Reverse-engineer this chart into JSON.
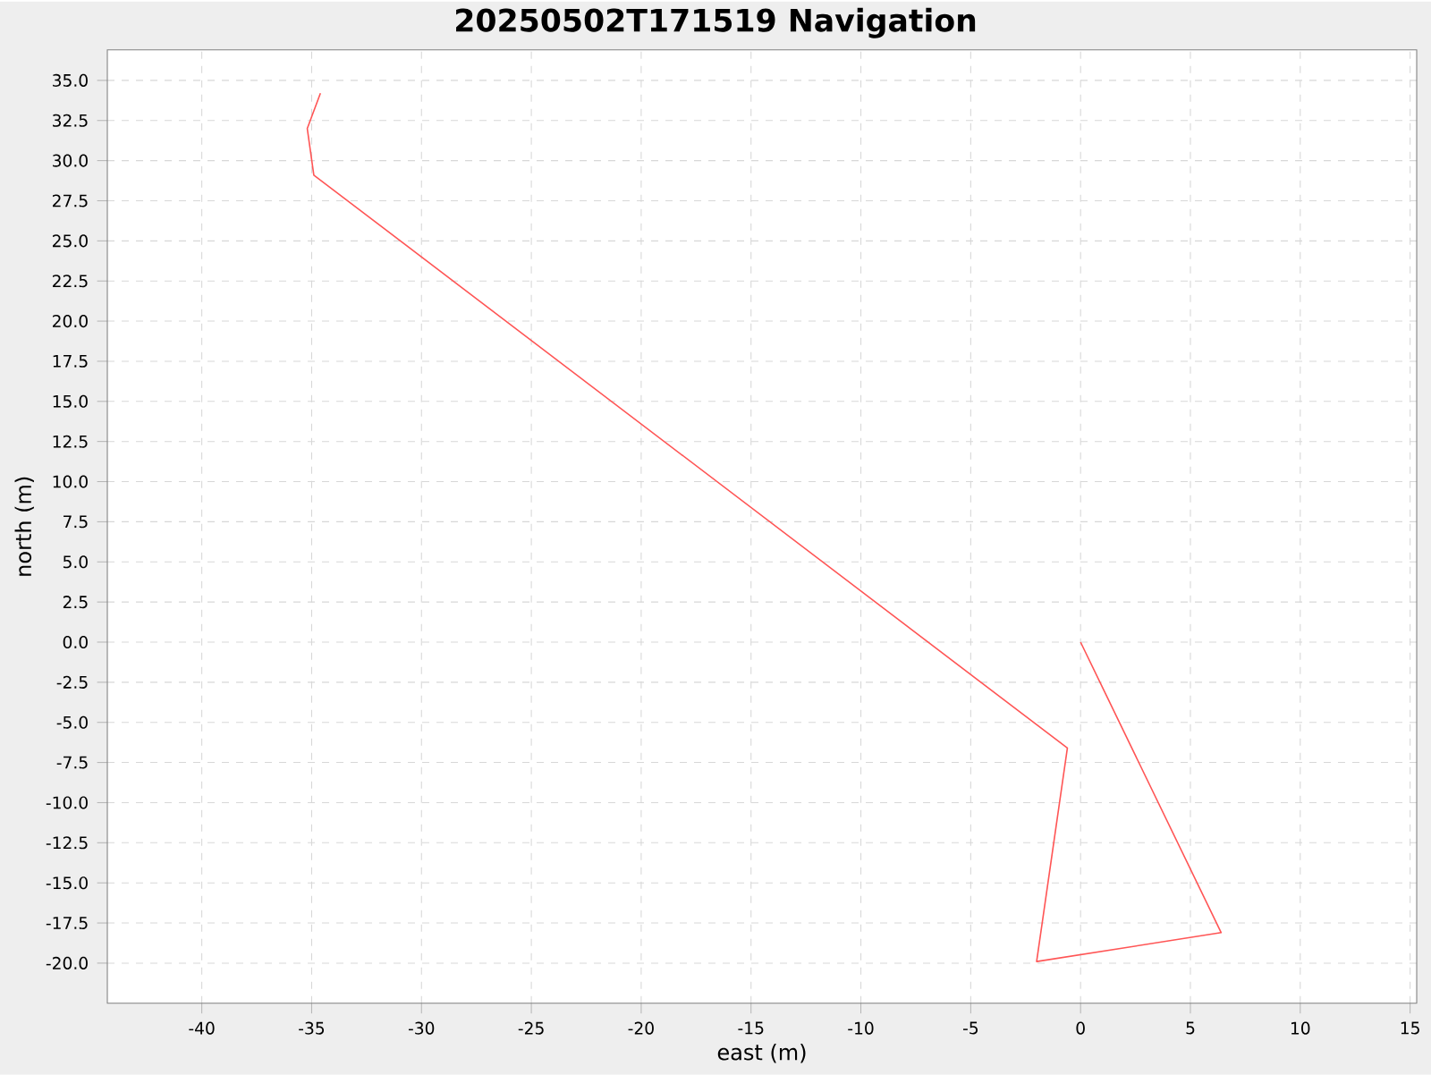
{
  "chart_data": {
    "type": "line",
    "title": "20250502T171519 Navigation",
    "xlabel": "east (m)",
    "ylabel": "north (m)",
    "series": [
      {
        "color": "#ff5555",
        "x": [
          0,
          6.4,
          -2.0,
          -0.6,
          -34.9,
          -35.2,
          -34.6
        ],
        "values": [
          0,
          -18.1,
          -19.9,
          -6.6,
          29.1,
          32.0,
          34.2
        ]
      }
    ],
    "xlim": [
      -44.3,
      15.3
    ],
    "ylim": [
      -22.5,
      36.9
    ],
    "xticks": [
      -40,
      -35,
      -30,
      -25,
      -20,
      -15,
      -10,
      -5,
      0,
      5,
      10,
      15
    ],
    "yticks": [
      {
        "value": -20,
        "label": "-20.0"
      },
      {
        "value": -17.5,
        "label": "-17.5"
      },
      {
        "value": -15,
        "label": "-15.0"
      },
      {
        "value": -12.5,
        "label": "-12.5"
      },
      {
        "value": -10,
        "label": "-10.0"
      },
      {
        "value": -7.5,
        "label": "-7.5"
      },
      {
        "value": -5,
        "label": "-5.0"
      },
      {
        "value": -2.5,
        "label": "-2.5"
      },
      {
        "value": 0,
        "label": "0.0"
      },
      {
        "value": 2.5,
        "label": "2.5"
      },
      {
        "value": 5,
        "label": "5.0"
      },
      {
        "value": 7.5,
        "label": "7.5"
      },
      {
        "value": 10,
        "label": "10.0"
      },
      {
        "value": 12.5,
        "label": "12.5"
      },
      {
        "value": 15,
        "label": "15.0"
      },
      {
        "value": 17.5,
        "label": "17.5"
      },
      {
        "value": 20,
        "label": "20.0"
      },
      {
        "value": 22.5,
        "label": "22.5"
      },
      {
        "value": 25,
        "label": "25.0"
      },
      {
        "value": 27.5,
        "label": "27.5"
      },
      {
        "value": 30,
        "label": "30.0"
      },
      {
        "value": 32.5,
        "label": "32.5"
      },
      {
        "value": 35,
        "label": "35.0"
      }
    ],
    "grid": true,
    "line_style": "solid"
  }
}
